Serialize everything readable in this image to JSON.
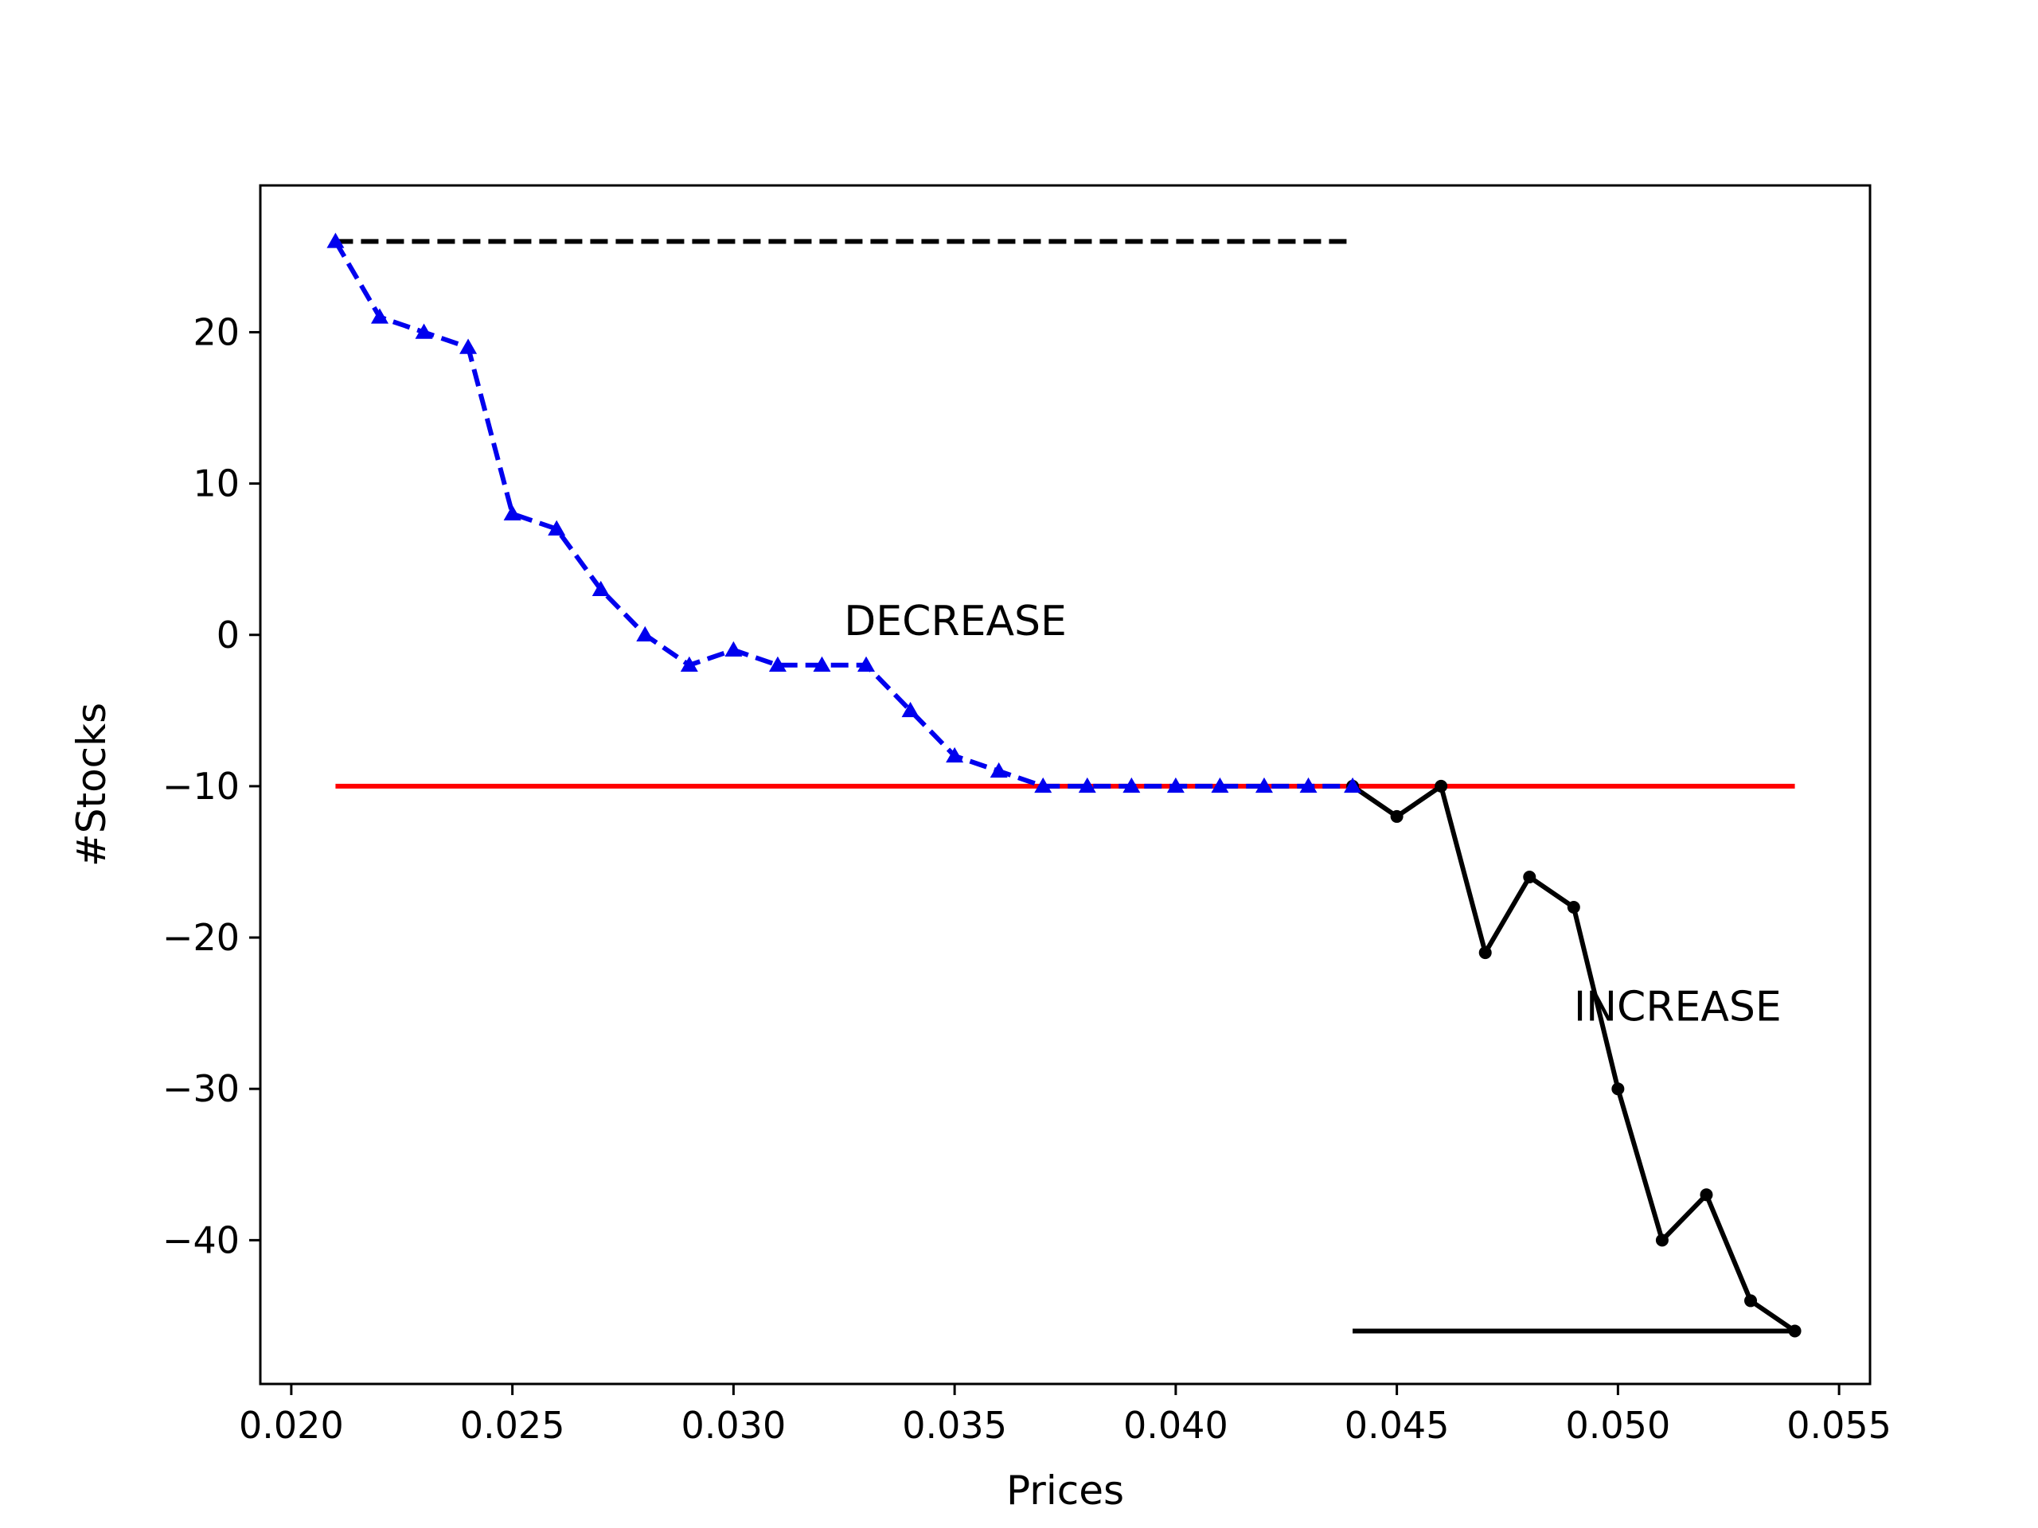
{
  "chart_data": {
    "type": "line",
    "xlabel": "Prices",
    "ylabel": "#Stocks",
    "xlim": [
      0.0193,
      0.0557
    ],
    "ylim": [
      -49.5,
      29.7
    ],
    "x_ticks": [
      0.02,
      0.025,
      0.03,
      0.035,
      0.04,
      0.045,
      0.05,
      0.055
    ],
    "x_tick_labels": [
      "0.020",
      "0.025",
      "0.030",
      "0.035",
      "0.040",
      "0.045",
      "0.050",
      "0.055"
    ],
    "y_ticks": [
      -40,
      -30,
      -20,
      -10,
      0,
      10,
      20
    ],
    "y_tick_labels": [
      "−40",
      "−30",
      "−20",
      "−10",
      "0",
      "10",
      "20"
    ],
    "grid": false,
    "series": [
      {
        "style": "dashed-triangle",
        "color": "#0000ee",
        "x": [
          0.021,
          0.022,
          0.023,
          0.024,
          0.025,
          0.026,
          0.027,
          0.028,
          0.029,
          0.03,
          0.031,
          0.032,
          0.033,
          0.034,
          0.035,
          0.036,
          0.037,
          0.038,
          0.039,
          0.04,
          0.041,
          0.042,
          0.043,
          0.044
        ],
        "y": [
          26,
          21,
          20,
          19,
          8,
          7,
          3,
          0,
          -2,
          -1,
          -2,
          -2,
          -2,
          -5,
          -8,
          -9,
          -10,
          -10,
          -10,
          -10,
          -10,
          -10,
          -10,
          -10
        ]
      },
      {
        "style": "solid-dot",
        "color": "#000000",
        "x": [
          0.044,
          0.045,
          0.046,
          0.047,
          0.048,
          0.049,
          0.05,
          0.051,
          0.052,
          0.053,
          0.054
        ],
        "y": [
          -10,
          -12,
          -10,
          -21,
          -16,
          -18,
          -30,
          -40,
          -37,
          -44,
          -46
        ]
      },
      {
        "style": "dashed",
        "color": "#000000",
        "x": [
          0.021,
          0.044
        ],
        "y": [
          26,
          26
        ]
      },
      {
        "style": "solid",
        "color": "#000000",
        "x": [
          0.044,
          0.054
        ],
        "y": [
          -46,
          -46
        ]
      },
      {
        "style": "solid",
        "color": "#ff0000",
        "x": [
          0.021,
          0.054
        ],
        "y": [
          -10,
          -10
        ]
      }
    ],
    "annotations": [
      {
        "text": "DECREASE",
        "x": 0.0325,
        "y": 0
      },
      {
        "text": "INCREASE",
        "x": 0.049,
        "y": -25.5
      }
    ]
  }
}
